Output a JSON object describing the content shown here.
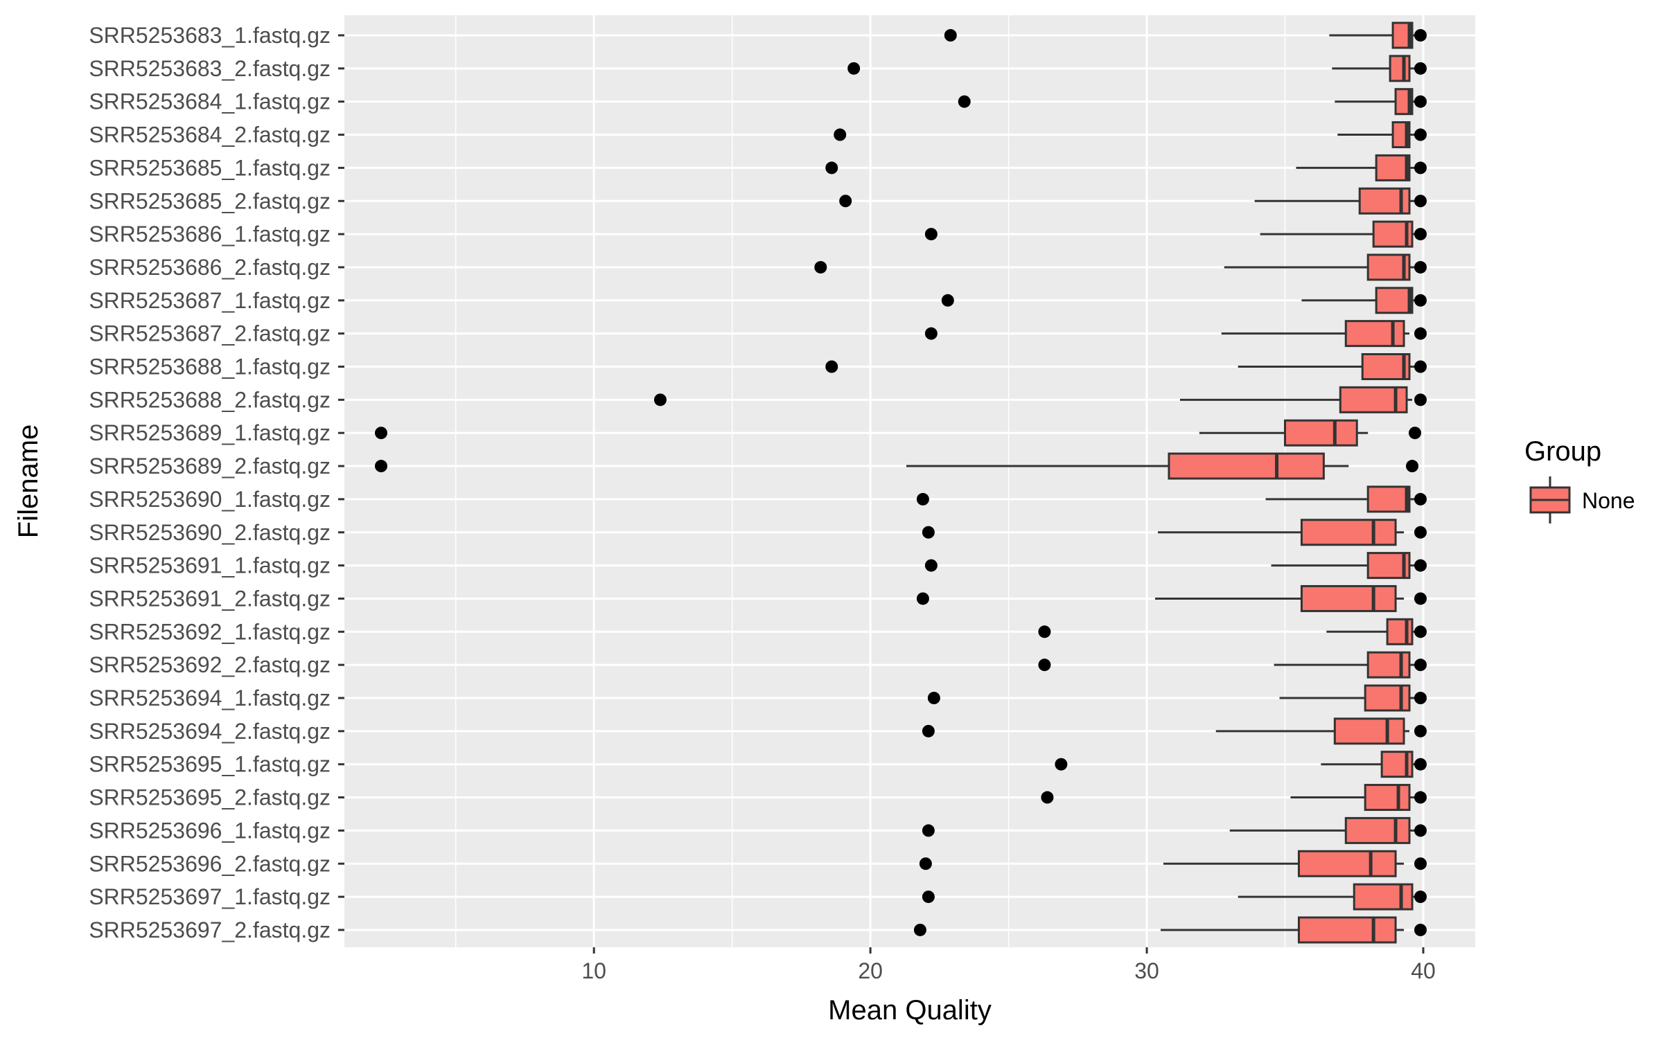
{
  "chart_data": {
    "type": "boxplot",
    "orientation": "horizontal",
    "xlabel": "Mean Quality",
    "ylabel": "Filename",
    "xlim": [
      0.5,
      42
    ],
    "x_ticks": [
      10,
      20,
      30,
      40
    ],
    "grid": true,
    "legend": {
      "title": "Group",
      "placement": "right",
      "entries": [
        {
          "label": "None",
          "color": "#F8766D"
        }
      ]
    },
    "colors": {
      "fill": "#F8766D",
      "panel": "#EBEBEB",
      "grid": "#FFFFFF",
      "stroke": "#333333"
    },
    "categories": [
      "SRR5253683_1.fastq.gz",
      "SRR5253683_2.fastq.gz",
      "SRR5253684_1.fastq.gz",
      "SRR5253684_2.fastq.gz",
      "SRR5253685_1.fastq.gz",
      "SRR5253685_2.fastq.gz",
      "SRR5253686_1.fastq.gz",
      "SRR5253686_2.fastq.gz",
      "SRR5253687_1.fastq.gz",
      "SRR5253687_2.fastq.gz",
      "SRR5253688_1.fastq.gz",
      "SRR5253688_2.fastq.gz",
      "SRR5253689_1.fastq.gz",
      "SRR5253689_2.fastq.gz",
      "SRR5253690_1.fastq.gz",
      "SRR5253690_2.fastq.gz",
      "SRR5253691_1.fastq.gz",
      "SRR5253691_2.fastq.gz",
      "SRR5253692_1.fastq.gz",
      "SRR5253692_2.fastq.gz",
      "SRR5253694_1.fastq.gz",
      "SRR5253694_2.fastq.gz",
      "SRR5253695_1.fastq.gz",
      "SRR5253695_2.fastq.gz",
      "SRR5253696_1.fastq.gz",
      "SRR5253696_2.fastq.gz",
      "SRR5253697_1.fastq.gz",
      "SRR5253697_2.fastq.gz"
    ],
    "boxes": [
      {
        "lw": 36.6,
        "q1": 38.9,
        "median": 39.5,
        "q3": 39.6,
        "uw": 39.7,
        "outliers": [
          22.9,
          39.9
        ]
      },
      {
        "lw": 36.7,
        "q1": 38.8,
        "median": 39.3,
        "q3": 39.5,
        "uw": 39.7,
        "outliers": [
          19.4,
          39.9
        ]
      },
      {
        "lw": 36.8,
        "q1": 39.0,
        "median": 39.5,
        "q3": 39.6,
        "uw": 39.7,
        "outliers": [
          23.4,
          39.9
        ]
      },
      {
        "lw": 36.9,
        "q1": 38.9,
        "median": 39.4,
        "q3": 39.5,
        "uw": 39.7,
        "outliers": [
          18.9,
          39.9
        ]
      },
      {
        "lw": 35.4,
        "q1": 38.3,
        "median": 39.4,
        "q3": 39.5,
        "uw": 39.7,
        "outliers": [
          18.6,
          39.9
        ]
      },
      {
        "lw": 33.9,
        "q1": 37.7,
        "median": 39.2,
        "q3": 39.5,
        "uw": 39.7,
        "outliers": [
          19.1,
          39.9
        ]
      },
      {
        "lw": 34.1,
        "q1": 38.2,
        "median": 39.4,
        "q3": 39.6,
        "uw": 39.7,
        "outliers": [
          22.2,
          39.9
        ]
      },
      {
        "lw": 32.8,
        "q1": 38.0,
        "median": 39.3,
        "q3": 39.5,
        "uw": 39.7,
        "outliers": [
          18.2,
          39.9
        ]
      },
      {
        "lw": 35.6,
        "q1": 38.3,
        "median": 39.5,
        "q3": 39.6,
        "uw": 39.7,
        "outliers": [
          22.8,
          39.9
        ]
      },
      {
        "lw": 32.7,
        "q1": 37.2,
        "median": 38.9,
        "q3": 39.3,
        "uw": 39.5,
        "outliers": [
          22.2,
          39.9
        ]
      },
      {
        "lw": 33.3,
        "q1": 37.8,
        "median": 39.3,
        "q3": 39.5,
        "uw": 39.7,
        "outliers": [
          18.6,
          39.9
        ]
      },
      {
        "lw": 31.2,
        "q1": 37.0,
        "median": 39.0,
        "q3": 39.4,
        "uw": 39.6,
        "outliers": [
          12.4,
          39.9
        ]
      },
      {
        "lw": 31.9,
        "q1": 35.0,
        "median": 36.8,
        "q3": 37.6,
        "uw": 38.0,
        "outliers": [
          2.3,
          39.7
        ]
      },
      {
        "lw": 21.3,
        "q1": 30.8,
        "median": 34.7,
        "q3": 36.4,
        "uw": 37.3,
        "outliers": [
          2.3,
          39.6
        ]
      },
      {
        "lw": 34.3,
        "q1": 38.0,
        "median": 39.4,
        "q3": 39.5,
        "uw": 39.7,
        "outliers": [
          21.9,
          39.9
        ]
      },
      {
        "lw": 30.4,
        "q1": 35.6,
        "median": 38.2,
        "q3": 39.0,
        "uw": 39.3,
        "outliers": [
          22.1,
          39.9
        ]
      },
      {
        "lw": 34.5,
        "q1": 38.0,
        "median": 39.3,
        "q3": 39.5,
        "uw": 39.7,
        "outliers": [
          22.2,
          39.9
        ]
      },
      {
        "lw": 30.3,
        "q1": 35.6,
        "median": 38.2,
        "q3": 39.0,
        "uw": 39.3,
        "outliers": [
          21.9,
          39.9
        ]
      },
      {
        "lw": 36.5,
        "q1": 38.7,
        "median": 39.4,
        "q3": 39.6,
        "uw": 39.7,
        "outliers": [
          26.3,
          39.9
        ]
      },
      {
        "lw": 34.6,
        "q1": 38.0,
        "median": 39.2,
        "q3": 39.5,
        "uw": 39.7,
        "outliers": [
          26.3,
          39.9
        ]
      },
      {
        "lw": 34.8,
        "q1": 37.9,
        "median": 39.2,
        "q3": 39.5,
        "uw": 39.7,
        "outliers": [
          22.3,
          39.9
        ]
      },
      {
        "lw": 32.5,
        "q1": 36.8,
        "median": 38.7,
        "q3": 39.3,
        "uw": 39.5,
        "outliers": [
          22.1,
          39.9
        ]
      },
      {
        "lw": 36.3,
        "q1": 38.5,
        "median": 39.4,
        "q3": 39.6,
        "uw": 39.7,
        "outliers": [
          26.9,
          39.9
        ]
      },
      {
        "lw": 35.2,
        "q1": 37.9,
        "median": 39.1,
        "q3": 39.5,
        "uw": 39.7,
        "outliers": [
          26.4,
          39.9
        ]
      },
      {
        "lw": 33.0,
        "q1": 37.2,
        "median": 39.0,
        "q3": 39.5,
        "uw": 39.7,
        "outliers": [
          22.1,
          39.9
        ]
      },
      {
        "lw": 30.6,
        "q1": 35.5,
        "median": 38.1,
        "q3": 39.0,
        "uw": 39.3,
        "outliers": [
          22.0,
          39.9
        ]
      },
      {
        "lw": 33.3,
        "q1": 37.5,
        "median": 39.2,
        "q3": 39.6,
        "uw": 39.7,
        "outliers": [
          22.1,
          39.9
        ]
      },
      {
        "lw": 30.5,
        "q1": 35.5,
        "median": 38.2,
        "q3": 39.0,
        "uw": 39.3,
        "outliers": [
          21.8,
          39.9
        ]
      }
    ]
  }
}
